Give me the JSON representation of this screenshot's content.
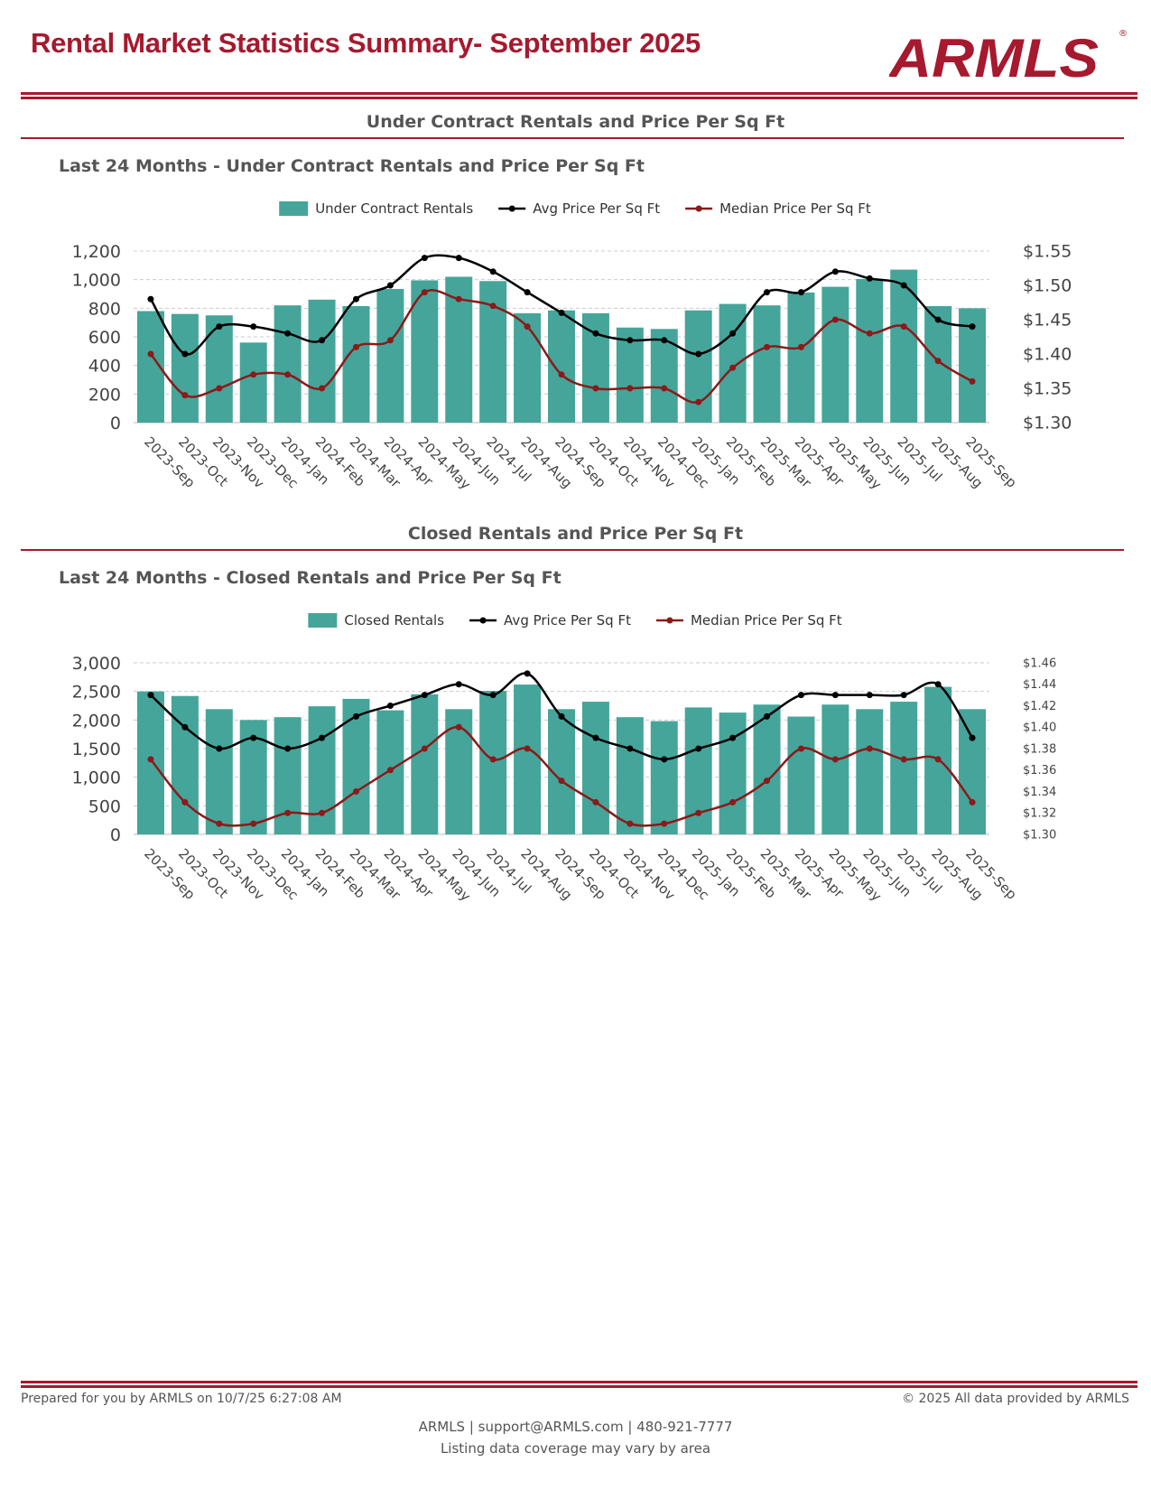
{
  "header": {
    "title": "Rental Market Statistics Summary- September 2025",
    "logo_text": "ARMLS"
  },
  "sections": [
    {
      "title": "Under Contract Rentals and Price Per Sq Ft",
      "subtitle": "Last 24 Months - Under Contract Rentals and Price Per Sq Ft"
    },
    {
      "title": "Closed Rentals and Price Per Sq Ft",
      "subtitle": "Last 24 Months - Closed Rentals and Price Per Sq Ft"
    }
  ],
  "colors": {
    "brand": "#A6192E",
    "bars": "#45A59A",
    "avg_line": "#000000",
    "median_line": "#8B1A1A"
  },
  "chart_data": [
    {
      "type": "bar+line",
      "categories": [
        "2023-Sep",
        "2023-Oct",
        "2023-Nov",
        "2023-Dec",
        "2024-Jan",
        "2024-Feb",
        "2024-Mar",
        "2024-Apr",
        "2024-May",
        "2024-Jun",
        "2024-Jul",
        "2024-Aug",
        "2024-Sep",
        "2024-Oct",
        "2024-Nov",
        "2024-Dec",
        "2025-Jan",
        "2025-Feb",
        "2025-Mar",
        "2025-Apr",
        "2025-May",
        "2025-Jun",
        "2025-Jul",
        "2025-Aug",
        "2025-Sep"
      ],
      "series": [
        {
          "name": "Under Contract Rentals",
          "axis": "left",
          "kind": "bar",
          "values": [
            780,
            760,
            750,
            560,
            820,
            860,
            815,
            935,
            995,
            1020,
            990,
            765,
            785,
            765,
            665,
            655,
            785,
            830,
            820,
            910,
            950,
            1005,
            1070,
            815,
            800
          ]
        },
        {
          "name": "Avg Price Per Sq Ft",
          "axis": "right",
          "kind": "line",
          "values": [
            1.48,
            1.4,
            1.44,
            1.44,
            1.43,
            1.42,
            1.48,
            1.5,
            1.54,
            1.54,
            1.52,
            1.49,
            1.46,
            1.43,
            1.42,
            1.42,
            1.4,
            1.43,
            1.49,
            1.49,
            1.52,
            1.51,
            1.5,
            1.45,
            1.44
          ]
        },
        {
          "name": "Median Price Per Sq Ft",
          "axis": "right",
          "kind": "line",
          "values": [
            1.4,
            1.34,
            1.35,
            1.37,
            1.37,
            1.35,
            1.41,
            1.42,
            1.49,
            1.48,
            1.47,
            1.44,
            1.37,
            1.35,
            1.35,
            1.35,
            1.33,
            1.38,
            1.41,
            1.41,
            1.45,
            1.43,
            1.44,
            1.39,
            1.36
          ]
        }
      ],
      "left_axis": {
        "ylim": [
          0,
          1200
        ],
        "ticks": [
          "0",
          "200",
          "400",
          "600",
          "800",
          "1,000",
          "1,200"
        ]
      },
      "right_axis": {
        "ylim": [
          1.3,
          1.55
        ],
        "ticks": [
          "$1.30",
          "$1.35",
          "$1.40",
          "$1.45",
          "$1.50",
          "$1.55"
        ]
      },
      "grid": true,
      "legend": "top"
    },
    {
      "type": "bar+line",
      "categories": [
        "2023-Sep",
        "2023-Oct",
        "2023-Nov",
        "2023-Dec",
        "2024-Jan",
        "2024-Feb",
        "2024-Mar",
        "2024-Apr",
        "2024-May",
        "2024-Jun",
        "2024-Jul",
        "2024-Aug",
        "2024-Sep",
        "2024-Oct",
        "2024-Nov",
        "2024-Dec",
        "2025-Jan",
        "2025-Feb",
        "2025-Mar",
        "2025-Apr",
        "2025-May",
        "2025-Jun",
        "2025-Jul",
        "2025-Aug",
        "2025-Sep"
      ],
      "series": [
        {
          "name": "Closed Rentals",
          "axis": "left",
          "kind": "bar",
          "values": [
            2500,
            2420,
            2190,
            2000,
            2050,
            2240,
            2370,
            2170,
            2450,
            2190,
            2510,
            2620,
            2190,
            2320,
            2050,
            1980,
            2220,
            2130,
            2270,
            2060,
            2270,
            2190,
            2320,
            2580,
            2190
          ]
        },
        {
          "name": "Avg Price Per Sq Ft",
          "axis": "right",
          "kind": "line",
          "values": [
            1.43,
            1.4,
            1.38,
            1.39,
            1.38,
            1.39,
            1.41,
            1.42,
            1.43,
            1.44,
            1.43,
            1.45,
            1.41,
            1.39,
            1.38,
            1.37,
            1.38,
            1.39,
            1.41,
            1.43,
            1.43,
            1.43,
            1.43,
            1.44,
            1.39
          ]
        },
        {
          "name": "Median Price Per Sq Ft",
          "axis": "right",
          "kind": "line",
          "values": [
            1.37,
            1.33,
            1.31,
            1.31,
            1.32,
            1.32,
            1.34,
            1.36,
            1.38,
            1.4,
            1.37,
            1.38,
            1.35,
            1.33,
            1.31,
            1.31,
            1.32,
            1.33,
            1.35,
            1.38,
            1.37,
            1.38,
            1.37,
            1.37,
            1.33
          ]
        }
      ],
      "left_axis": {
        "ylim": [
          0,
          3000
        ],
        "ticks": [
          "0",
          "500",
          "1,000",
          "1,500",
          "2,000",
          "2,500",
          "3,000"
        ]
      },
      "right_axis": {
        "ylim": [
          1.3,
          1.46
        ],
        "ticks": [
          "$1.30",
          "$1.32",
          "$1.34",
          "$1.36",
          "$1.38",
          "$1.40",
          "$1.42",
          "$1.44",
          "$1.46"
        ]
      },
      "grid": true,
      "legend": "top"
    }
  ],
  "footer": {
    "prepared": "Prepared for you by ARMLS on 10/7/25 6:27:08 AM",
    "copyright": "© 2025 All data provided by ARMLS",
    "contact": "ARMLS | support@ARMLS.com | 480-921-7777",
    "coverage": "Listing data coverage may vary by area"
  }
}
